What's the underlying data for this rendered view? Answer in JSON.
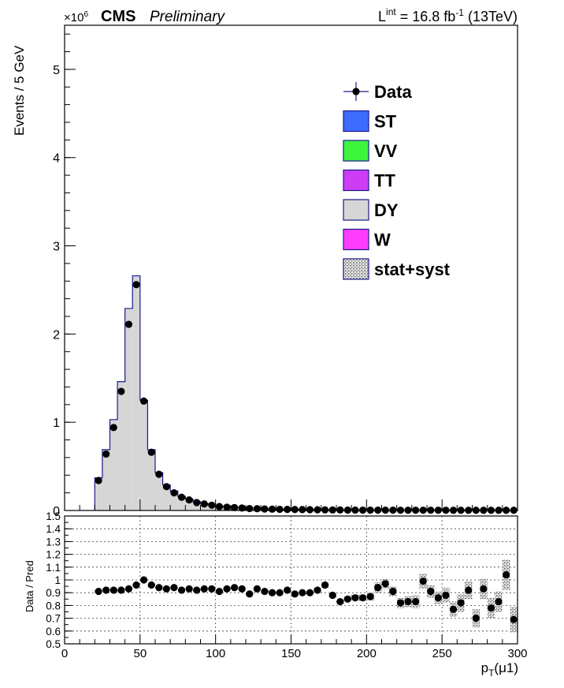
{
  "header": {
    "exponent_label": "×10",
    "exponent_power": "6",
    "experiment": "CMS",
    "status": "Preliminary",
    "lumi_prefix": "L",
    "lumi_sup": "int",
    "lumi_value": " = 16.8 fb",
    "lumi_unit_sup": "-1",
    "lumi_energy": " (13TeV)"
  },
  "legend": [
    {
      "label": "Data",
      "style": "marker",
      "color": "#000000"
    },
    {
      "label": "ST",
      "style": "box",
      "color": "#3d6cff"
    },
    {
      "label": "VV",
      "style": "box",
      "color": "#3df53d"
    },
    {
      "label": "TT",
      "style": "box",
      "color": "#cc3df5"
    },
    {
      "label": "DY",
      "style": "box",
      "color": "#d6d6d6"
    },
    {
      "label": "W",
      "style": "box",
      "color": "#ff3dff"
    },
    {
      "label": "stat+syst",
      "style": "hatch",
      "color": "#555555"
    }
  ],
  "chart_data": [
    {
      "type": "bar",
      "panel": "main",
      "ylabel": "Events / 5 GeV",
      "y_scale_note": "×10^6",
      "xlim": [
        0,
        300
      ],
      "ylim": [
        0,
        5.5
      ],
      "bin_width": 5,
      "yticks": [
        0,
        1,
        2,
        3,
        4,
        5
      ],
      "ytick_labels": [
        "0",
        "1",
        "2",
        "3",
        "4",
        "5"
      ],
      "series": [
        {
          "name": "DY",
          "style": "histogram",
          "color": "#d6d6d6",
          "x": [
            20,
            25,
            30,
            35,
            40,
            45,
            50,
            55,
            60,
            65,
            70,
            75,
            80,
            85,
            90,
            95,
            100,
            105,
            110,
            115,
            120,
            125,
            130,
            135,
            140,
            145,
            150,
            155,
            160,
            165,
            170,
            175,
            180,
            185,
            190,
            195,
            200,
            205,
            210,
            215,
            220,
            225,
            230,
            235,
            240,
            245,
            250,
            255,
            260,
            265,
            270,
            275,
            280,
            285,
            290,
            295
          ],
          "values": [
            0.37,
            0.69,
            1.03,
            1.46,
            2.29,
            2.66,
            1.25,
            0.69,
            0.43,
            0.29,
            0.22,
            0.16,
            0.13,
            0.1,
            0.08,
            0.065,
            0.05,
            0.04,
            0.035,
            0.03,
            0.025,
            0.022,
            0.019,
            0.017,
            0.015,
            0.013,
            0.012,
            0.011,
            0.01,
            0.009,
            0.008,
            0.007,
            0.007,
            0.006,
            0.006,
            0.005,
            0.005,
            0.005,
            0.004,
            0.004,
            0.004,
            0.004,
            0.003,
            0.003,
            0.003,
            0.003,
            0.003,
            0.003,
            0.002,
            0.002,
            0.002,
            0.002,
            0.002,
            0.002,
            0.002,
            0.002
          ]
        },
        {
          "name": "Data",
          "style": "points",
          "color": "#000000",
          "x": [
            22.5,
            27.5,
            32.5,
            37.5,
            42.5,
            47.5,
            52.5,
            57.5,
            62.5,
            67.5,
            72.5,
            77.5,
            82.5,
            87.5,
            92.5,
            97.5,
            102.5,
            107.5,
            112.5,
            117.5,
            122.5,
            127.5,
            132.5,
            137.5,
            142.5,
            147.5,
            152.5,
            157.5,
            162.5,
            167.5,
            172.5,
            177.5,
            182.5,
            187.5,
            192.5,
            197.5,
            202.5,
            207.5,
            212.5,
            217.5,
            222.5,
            227.5,
            232.5,
            237.5,
            242.5,
            247.5,
            252.5,
            257.5,
            262.5,
            267.5,
            272.5,
            277.5,
            282.5,
            287.5,
            292.5,
            297.5
          ],
          "values": [
            0.34,
            0.64,
            0.94,
            1.35,
            2.11,
            2.56,
            1.24,
            0.66,
            0.41,
            0.27,
            0.2,
            0.15,
            0.12,
            0.09,
            0.074,
            0.06,
            0.045,
            0.037,
            0.033,
            0.028,
            0.022,
            0.02,
            0.017,
            0.015,
            0.013,
            0.012,
            0.011,
            0.01,
            0.009,
            0.008,
            0.007,
            0.006,
            0.006,
            0.005,
            0.005,
            0.004,
            0.004,
            0.004,
            0.004,
            0.004,
            0.003,
            0.003,
            0.003,
            0.003,
            0.003,
            0.003,
            0.003,
            0.002,
            0.002,
            0.002,
            0.002,
            0.002,
            0.002,
            0.002,
            0.002,
            0.002
          ]
        }
      ]
    },
    {
      "type": "scatter",
      "panel": "ratio",
      "xlabel": "p_T(μ1)",
      "ylabel": "Data / Pred",
      "xlim": [
        0,
        300
      ],
      "ylim": [
        0.5,
        1.5
      ],
      "grid": true,
      "xticks": [
        0,
        50,
        100,
        150,
        200,
        250,
        300
      ],
      "xtick_labels": [
        "0",
        "50",
        "100",
        "150",
        "200",
        "250",
        "300"
      ],
      "yticks": [
        0.5,
        0.6,
        0.7,
        0.8,
        0.9,
        1.0,
        1.1,
        1.2,
        1.3,
        1.4,
        1.5
      ],
      "ytick_labels": [
        "0.5",
        "0.6",
        "0.7",
        "0.8",
        "0.9",
        "1",
        "1.1",
        "1.2",
        "1.3",
        "1.4",
        "1.5"
      ],
      "series": [
        {
          "name": "Data",
          "x": [
            22.5,
            27.5,
            32.5,
            37.5,
            42.5,
            47.5,
            52.5,
            57.5,
            62.5,
            67.5,
            72.5,
            77.5,
            82.5,
            87.5,
            92.5,
            97.5,
            102.5,
            107.5,
            112.5,
            117.5,
            122.5,
            127.5,
            132.5,
            137.5,
            142.5,
            147.5,
            152.5,
            157.5,
            162.5,
            167.5,
            172.5,
            177.5,
            182.5,
            187.5,
            192.5,
            197.5,
            202.5,
            207.5,
            212.5,
            217.5,
            222.5,
            227.5,
            232.5,
            237.5,
            242.5,
            247.5,
            252.5,
            257.5,
            262.5,
            267.5,
            272.5,
            277.5,
            282.5,
            287.5,
            292.5,
            297.5
          ],
          "values": [
            0.91,
            0.92,
            0.92,
            0.92,
            0.93,
            0.96,
            1.0,
            0.96,
            0.94,
            0.93,
            0.94,
            0.92,
            0.93,
            0.92,
            0.93,
            0.93,
            0.91,
            0.93,
            0.94,
            0.93,
            0.89,
            0.93,
            0.91,
            0.9,
            0.9,
            0.92,
            0.89,
            0.9,
            0.9,
            0.92,
            0.96,
            0.88,
            0.83,
            0.85,
            0.86,
            0.86,
            0.87,
            0.94,
            0.97,
            0.91,
            0.82,
            0.83,
            0.83,
            0.99,
            0.91,
            0.86,
            0.88,
            0.77,
            0.82,
            0.92,
            0.7,
            0.93,
            0.78,
            0.83,
            1.04,
            0.69
          ],
          "uncertainty": [
            0.01,
            0.01,
            0.01,
            0.01,
            0.01,
            0.01,
            0.01,
            0.01,
            0.01,
            0.01,
            0.01,
            0.01,
            0.01,
            0.01,
            0.01,
            0.01,
            0.01,
            0.01,
            0.01,
            0.01,
            0.01,
            0.01,
            0.01,
            0.01,
            0.01,
            0.01,
            0.01,
            0.01,
            0.01,
            0.015,
            0.02,
            0.02,
            0.02,
            0.02,
            0.025,
            0.025,
            0.03,
            0.04,
            0.04,
            0.04,
            0.04,
            0.045,
            0.05,
            0.06,
            0.05,
            0.05,
            0.06,
            0.06,
            0.07,
            0.07,
            0.07,
            0.08,
            0.08,
            0.08,
            0.12,
            0.1
          ]
        }
      ]
    }
  ]
}
